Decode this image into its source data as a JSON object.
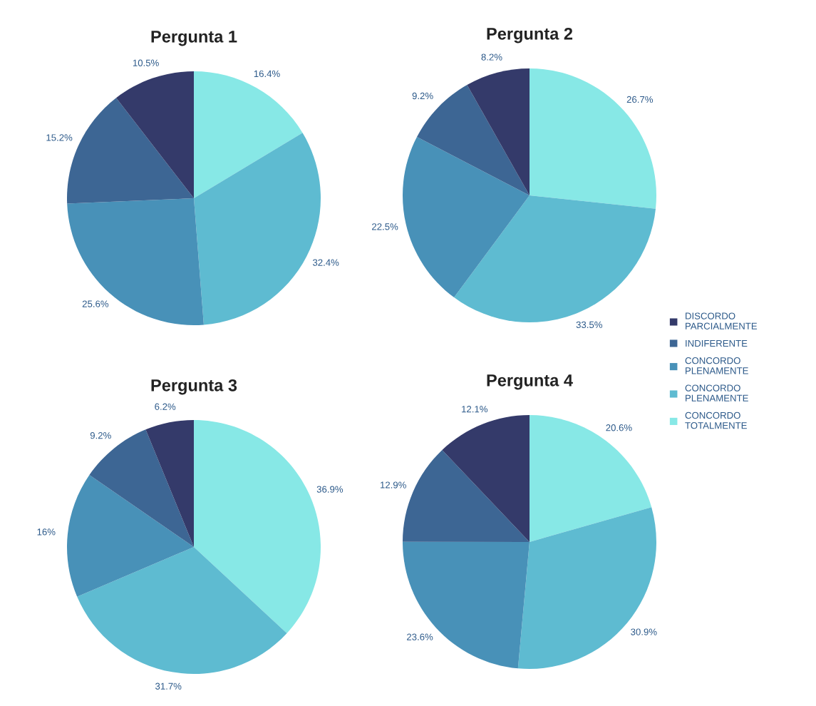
{
  "chart_data": [
    {
      "type": "pie",
      "title": "Pergunta 1",
      "categories": [
        "CONCORDO TOTALMENTE",
        "CONCORDO PLENAMENTE",
        "CONCORDO PLENAMENTE",
        "INDIFERENTE",
        "DISCORDO PARCIALMENTE"
      ],
      "values": [
        16.4,
        32.4,
        25.6,
        15.2,
        10.5
      ],
      "value_labels": [
        "16.4%",
        "32.4%",
        "25.6%",
        "15.2%",
        "10.5%"
      ],
      "colors": [
        "#87e8e6",
        "#5ebbd1",
        "#4891b8",
        "#3d6694",
        "#343a6a"
      ],
      "legend": "right"
    },
    {
      "type": "pie",
      "title": "Pergunta 2",
      "categories": [
        null,
        null,
        null,
        null,
        null
      ],
      "values": [
        26.7,
        33.5,
        22.5,
        9.2,
        8.2
      ],
      "value_labels": [
        "26.7%",
        "33.5%",
        "22.5%",
        "9.2%",
        "8.2%"
      ],
      "colors": [
        "#87e8e6",
        "#5ebbd1",
        "#4891b8",
        "#3d6694",
        "#343a6a"
      ]
    },
    {
      "type": "pie",
      "title": "Pergunta 3",
      "categories": [
        null,
        null,
        null,
        null,
        null
      ],
      "values": [
        36.9,
        31.7,
        16,
        9.2,
        6.2
      ],
      "value_labels": [
        "36.9%",
        "31.7%",
        "16%",
        "9.2%",
        "6.2%"
      ],
      "colors": [
        "#87e8e6",
        "#5ebbd1",
        "#4891b8",
        "#3d6694",
        "#343a6a"
      ]
    },
    {
      "type": "pie",
      "title": "Pergunta 4",
      "categories": [
        null,
        null,
        null,
        null,
        null
      ],
      "values": [
        20.6,
        30.9,
        23.6,
        12.9,
        12.1
      ],
      "value_labels": [
        "20.6%",
        "30.9%",
        "23.6%",
        "12.9%",
        "12.1%"
      ],
      "colors": [
        "#87e8e6",
        "#5ebbd1",
        "#4891b8",
        "#3d6694",
        "#343a6a"
      ]
    }
  ]
}
